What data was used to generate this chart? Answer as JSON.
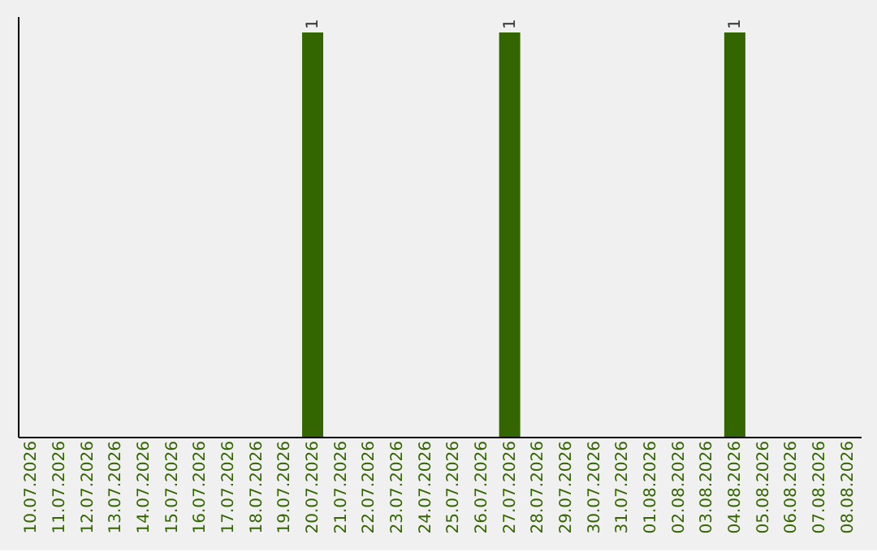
{
  "chart_data": {
    "type": "bar",
    "categories": [
      "10.07.2026",
      "11.07.2026",
      "12.07.2026",
      "13.07.2026",
      "14.07.2026",
      "15.07.2026",
      "16.07.2026",
      "17.07.2026",
      "18.07.2026",
      "19.07.2026",
      "20.07.2026",
      "21.07.2026",
      "22.07.2026",
      "23.07.2026",
      "24.07.2026",
      "25.07.2026",
      "26.07.2026",
      "27.07.2026",
      "28.07.2026",
      "29.07.2026",
      "30.07.2026",
      "31.07.2026",
      "01.08.2026",
      "02.08.2026",
      "03.08.2026",
      "04.08.2026",
      "05.08.2026",
      "06.08.2026",
      "07.08.2026",
      "08.08.2026"
    ],
    "values": [
      0,
      0,
      0,
      0,
      0,
      0,
      0,
      0,
      0,
      0,
      1,
      0,
      0,
      0,
      0,
      0,
      0,
      1,
      0,
      0,
      0,
      0,
      0,
      0,
      0,
      1,
      0,
      0,
      0,
      0
    ],
    "value_labels": [
      null,
      null,
      null,
      null,
      null,
      null,
      null,
      null,
      null,
      null,
      "1",
      null,
      null,
      null,
      null,
      null,
      null,
      "1",
      null,
      null,
      null,
      null,
      null,
      null,
      null,
      "1",
      null,
      null,
      null,
      null
    ],
    "color": "#336600",
    "ylim": [
      0,
      1.04
    ],
    "tick_labels": "x"
  }
}
